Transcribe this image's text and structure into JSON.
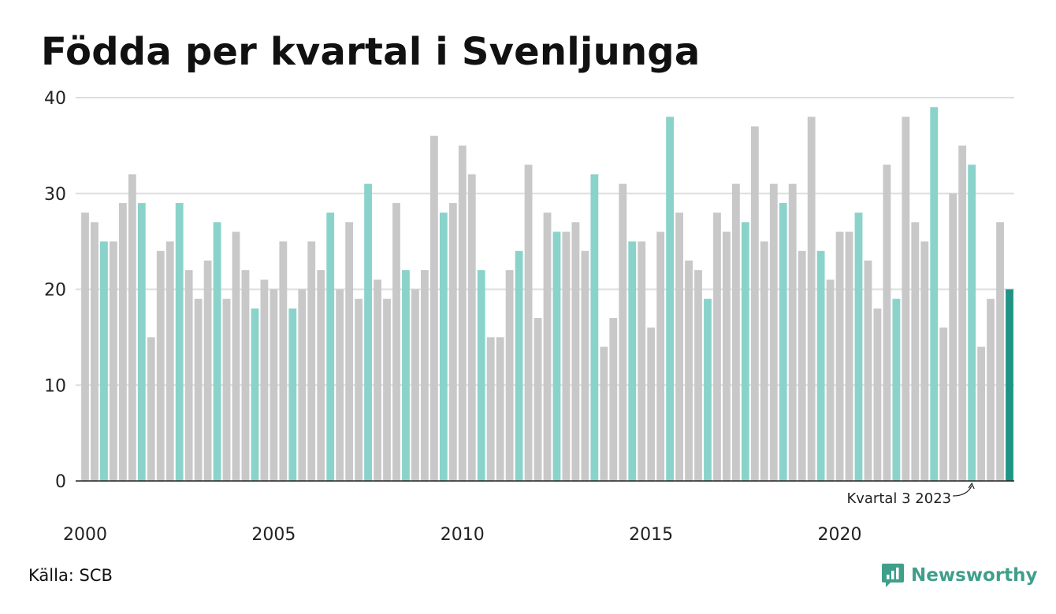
{
  "title": "Födda per kvartal i Svenljunga",
  "source": "Källa: SCB",
  "brand": {
    "name": "Newsworthy",
    "icon": "newsworthy-logo-icon"
  },
  "colors": {
    "q3": "#8ad3cb",
    "other": "#c8c8c8",
    "latest": "#1e9484",
    "grid": "#dddddd",
    "axis": "#222222",
    "brand": "#3f9f8b"
  },
  "chart_data": {
    "type": "bar",
    "ylim": [
      0,
      40
    ],
    "yticks": [
      0,
      10,
      20,
      30,
      40
    ],
    "xticks": [
      {
        "label": "2000",
        "year": 2000
      },
      {
        "label": "2005",
        "year": 2005
      },
      {
        "label": "2010",
        "year": 2010
      },
      {
        "label": "2015",
        "year": 2015
      },
      {
        "label": "2020",
        "year": 2020
      }
    ],
    "start_year": 2000,
    "start_quarter": 1,
    "grid": true,
    "annotation": {
      "text": "Kvartal 3 2023",
      "year": 2023,
      "quarter": 3
    },
    "values": [
      28,
      27,
      25,
      25,
      29,
      32,
      29,
      15,
      24,
      25,
      29,
      22,
      19,
      23,
      27,
      19,
      26,
      22,
      18,
      21,
      20,
      25,
      18,
      20,
      25,
      22,
      28,
      20,
      27,
      19,
      31,
      21,
      19,
      29,
      22,
      20,
      22,
      36,
      28,
      29,
      35,
      32,
      22,
      15,
      15,
      22,
      24,
      33,
      17,
      28,
      26,
      26,
      27,
      24,
      32,
      14,
      17,
      31,
      25,
      25,
      16,
      26,
      38,
      28,
      23,
      22,
      19,
      28,
      26,
      31,
      27,
      37,
      25,
      31,
      29,
      31,
      24,
      38,
      24,
      21,
      26,
      26,
      28,
      23,
      18,
      33,
      19,
      38,
      27,
      25,
      39,
      16,
      30,
      35,
      33,
      14,
      19,
      27,
      20
    ]
  }
}
